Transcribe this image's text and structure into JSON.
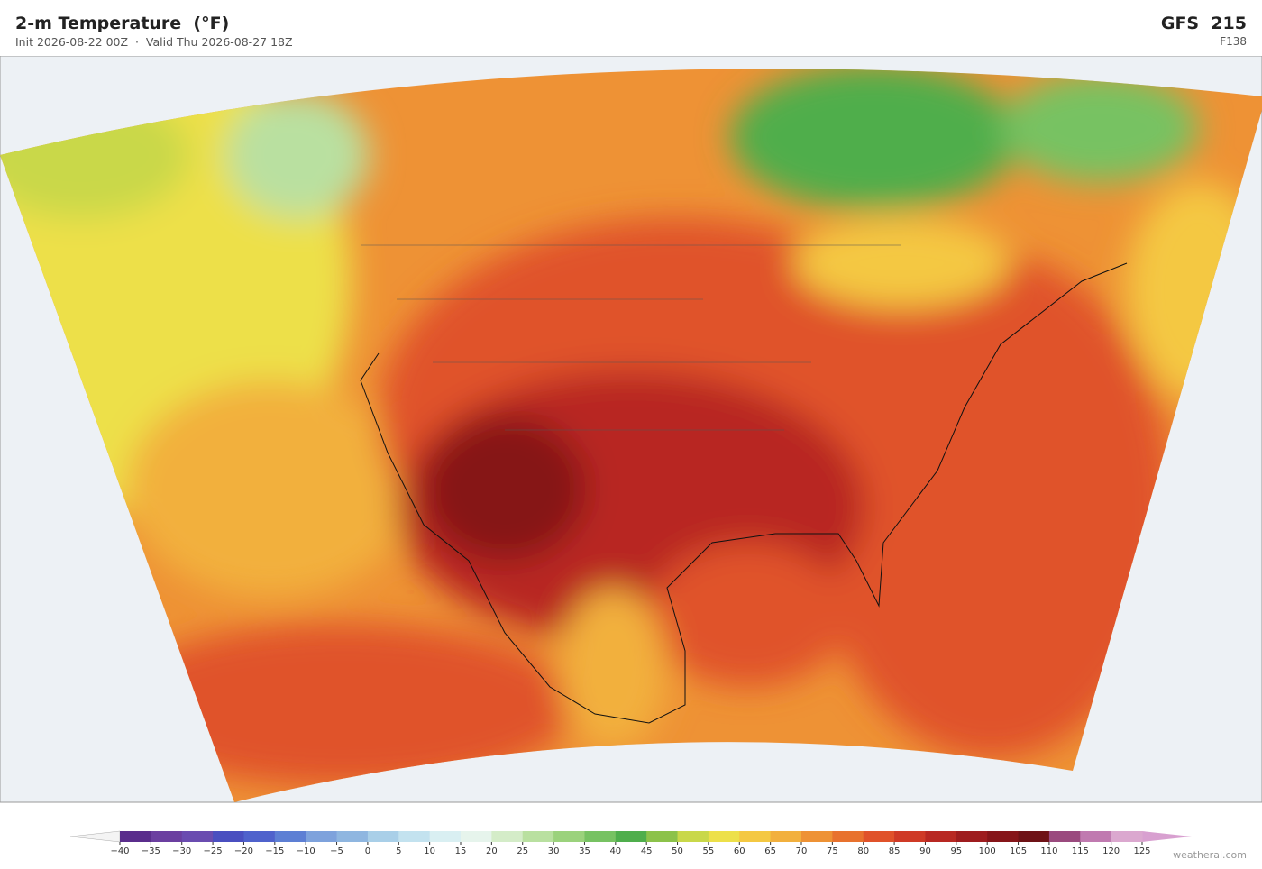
{
  "header": {
    "title": "2-m Temperature  (°F)",
    "subtitle": "Init 2026-08-22 00Z  ·  Valid Thu 2026-08-27 18Z",
    "model": "GFS  215",
    "forecast_hour": "F138"
  },
  "colorbar": {
    "ticks": [
      {
        "value": -40,
        "label": "−40"
      },
      {
        "value": -35,
        "label": "−35"
      },
      {
        "value": -30,
        "label": "−30"
      },
      {
        "value": -25,
        "label": "−25"
      },
      {
        "value": -20,
        "label": "−20"
      },
      {
        "value": -15,
        "label": "−15"
      },
      {
        "value": -10,
        "label": "−10"
      },
      {
        "value": -5,
        "label": "−5"
      },
      0,
      5,
      10,
      15,
      20,
      25,
      30,
      35,
      40,
      45,
      50,
      55,
      60,
      65,
      70,
      75,
      80,
      85,
      90,
      95,
      100,
      105,
      110,
      115,
      120,
      125
    ],
    "colors": [
      "#5a2d8c",
      "#6b3fa0",
      "#6a4cb0",
      "#4a4fc0",
      "#4f62cc",
      "#5d7fd4",
      "#7ea2dc",
      "#8fb6e0",
      "#a9cfe8",
      "#c3e2ef",
      "#d9eff2",
      "#e6f4ec",
      "#d4ecc8",
      "#b9e0a0",
      "#9bd27c",
      "#77c262",
      "#4fae4c",
      "#8cc24a",
      "#c9d84a",
      "#ede04a",
      "#f4c842",
      "#f2b03e",
      "#ee9235",
      "#e8722e",
      "#e0522a",
      "#cf3a26",
      "#b82822",
      "#9e1c1e",
      "#861519",
      "#6e1216",
      "#9a4a7e",
      "#c07ab0",
      "#dba8cf"
    ],
    "under_color": "#f4f4f4",
    "over_color": "#d8a0d0"
  },
  "watermark": "weatherai.com"
}
